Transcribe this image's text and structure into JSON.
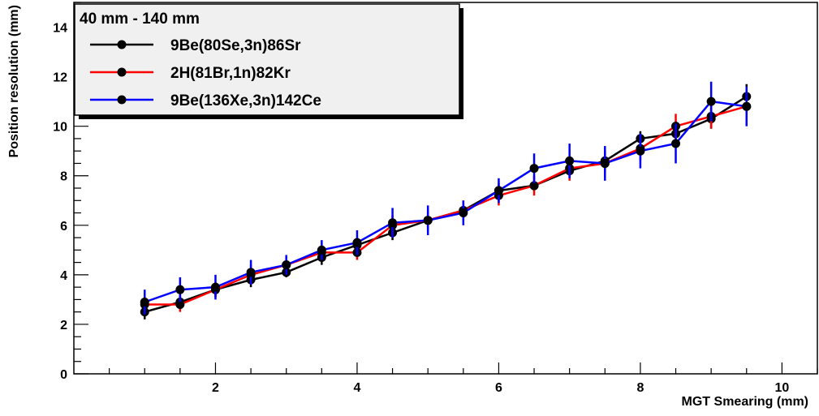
{
  "chart_data": {
    "type": "line",
    "legend_header": "40 mm - 140 mm",
    "legend_position": "top-left",
    "xlabel": "MGT Smearing (mm)",
    "ylabel": "Position resolution (mm)",
    "xlim": [
      0,
      10.5
    ],
    "ylim": [
      0,
      15
    ],
    "xticks": [
      "2",
      "4",
      "6",
      "8",
      "10"
    ],
    "yticks": [
      "0",
      "2",
      "4",
      "6",
      "8",
      "10",
      "12",
      "14"
    ],
    "grid": false,
    "x": [
      1.0,
      1.5,
      2.0,
      2.5,
      3.0,
      3.5,
      4.0,
      4.5,
      5.0,
      5.5,
      6.0,
      6.5,
      7.0,
      7.5,
      8.0,
      8.5,
      9.0,
      9.5
    ],
    "series": [
      {
        "name": "9Be(80Se,3n)86Sr",
        "color": "#000000",
        "values": [
          2.5,
          2.9,
          3.4,
          3.8,
          4.1,
          4.7,
          5.2,
          5.7,
          6.2,
          6.6,
          7.4,
          7.6,
          8.2,
          8.6,
          9.5,
          9.7,
          10.3,
          11.2
        ],
        "errors": [
          0.3,
          0.3,
          0.3,
          0.3,
          0.2,
          0.3,
          0.3,
          0.3,
          0.3,
          0.3,
          0.3,
          0.2,
          0.3,
          0.4,
          0.3,
          0.5,
          0.4,
          0.5
        ]
      },
      {
        "name": "2H(81Br,1n)82Kr",
        "color": "#ff0000",
        "values": [
          2.8,
          2.8,
          3.4,
          4.0,
          4.4,
          4.9,
          4.9,
          6.0,
          6.2,
          6.6,
          7.2,
          7.6,
          8.3,
          8.5,
          9.1,
          10.0,
          10.4,
          10.8
        ],
        "errors": [
          0.3,
          0.3,
          0.3,
          0.4,
          0.3,
          0.3,
          0.3,
          0.4,
          0.4,
          0.4,
          0.4,
          0.4,
          0.5,
          0.5,
          0.5,
          0.5,
          0.5,
          0.5
        ]
      },
      {
        "name": "9Be(136Xe,3n)142Ce",
        "color": "#0000ff",
        "values": [
          2.9,
          3.4,
          3.5,
          4.1,
          4.4,
          5.0,
          5.3,
          6.1,
          6.2,
          6.5,
          7.4,
          8.3,
          8.6,
          8.5,
          9.0,
          9.3,
          11.0,
          10.8
        ],
        "errors": [
          0.5,
          0.5,
          0.5,
          0.5,
          0.4,
          0.4,
          0.5,
          0.6,
          0.6,
          0.5,
          0.5,
          0.6,
          0.7,
          0.7,
          0.7,
          0.8,
          0.8,
          0.8
        ]
      }
    ]
  }
}
